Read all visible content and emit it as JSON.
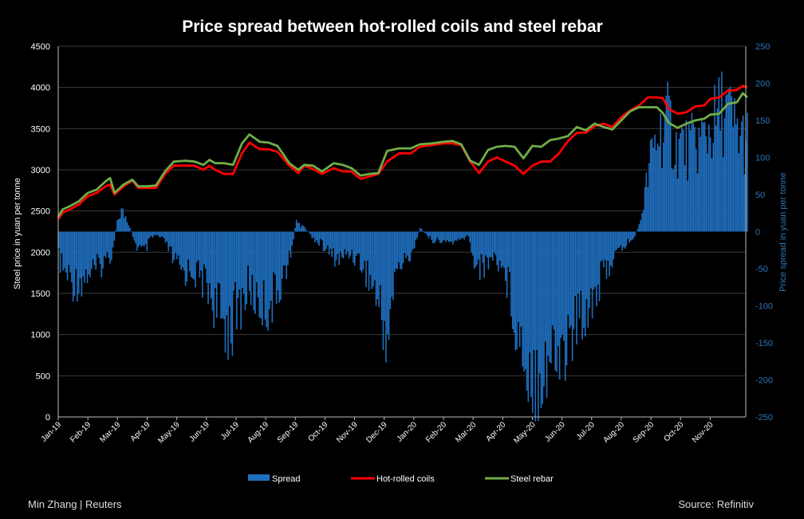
{
  "chart_data": {
    "type": "bar+line",
    "title": "Price spread between hot-rolled coils and steel rebar",
    "ylabel_left": "Steel price in yuan per tonne",
    "ylabel_right": "Price spread in yuan per tonne",
    "ylim_left": [
      0,
      4500
    ],
    "ylim_right": [
      -250,
      250
    ],
    "yticks_left": [
      "0",
      "500",
      "1000",
      "1500",
      "2000",
      "2500",
      "3000",
      "3500",
      "4000",
      "4500"
    ],
    "yticks_right": [
      "-250",
      "-200",
      "-150",
      "-100",
      "-50",
      "0",
      "50",
      "100",
      "150",
      "200",
      "250"
    ],
    "x_ticks": [
      "Jan-19",
      "Feb-19",
      "Mar-19",
      "Apr-19",
      "May-19",
      "Jun-19",
      "Jul-19",
      "Aug-19",
      "Sep-19",
      "Oct-19",
      "Nov-19",
      "Dec-19",
      "Jan-20",
      "Feb-20",
      "Mar-20",
      "Apr-20",
      "May-20",
      "Jun-20",
      "Jul-20",
      "Aug-20",
      "Sep-20",
      "Oct-20",
      "Nov-20"
    ],
    "x_range_months": [
      0,
      23.2
    ],
    "grid": true,
    "legend": "bottom",
    "colors": {
      "spread": "#1f6fbf",
      "hrc": "#ff0000",
      "rebar": "#70ad47",
      "grid": "#3a3a3a"
    },
    "series": [
      {
        "name": "Hot-rolled coils",
        "axis": "left",
        "points": [
          [
            0,
            2400
          ],
          [
            0.15,
            2480
          ],
          [
            0.4,
            2520
          ],
          [
            0.7,
            2580
          ],
          [
            1.0,
            2680
          ],
          [
            1.3,
            2720
          ],
          [
            1.6,
            2800
          ],
          [
            1.75,
            2820
          ],
          [
            1.9,
            2700
          ],
          [
            2.2,
            2800
          ],
          [
            2.5,
            2870
          ],
          [
            2.7,
            2780
          ],
          [
            3.0,
            2780
          ],
          [
            3.3,
            2780
          ],
          [
            3.6,
            2950
          ],
          [
            3.9,
            3050
          ],
          [
            4.3,
            3050
          ],
          [
            4.6,
            3050
          ],
          [
            4.9,
            3000
          ],
          [
            5.1,
            3050
          ],
          [
            5.3,
            3000
          ],
          [
            5.6,
            2950
          ],
          [
            5.9,
            2950
          ],
          [
            6.2,
            3200
          ],
          [
            6.45,
            3330
          ],
          [
            6.8,
            3250
          ],
          [
            7.1,
            3250
          ],
          [
            7.4,
            3220
          ],
          [
            7.8,
            3050
          ],
          [
            8.1,
            2960
          ],
          [
            8.3,
            3050
          ],
          [
            8.6,
            3010
          ],
          [
            8.9,
            2950
          ],
          [
            9.3,
            3020
          ],
          [
            9.6,
            2980
          ],
          [
            9.9,
            2980
          ],
          [
            10.2,
            2890
          ],
          [
            10.5,
            2920
          ],
          [
            10.8,
            2950
          ],
          [
            11.1,
            3100
          ],
          [
            11.5,
            3200
          ],
          [
            11.9,
            3200
          ],
          [
            12.2,
            3280
          ],
          [
            12.6,
            3300
          ],
          [
            13.0,
            3320
          ],
          [
            13.3,
            3320
          ],
          [
            13.6,
            3300
          ],
          [
            13.9,
            3100
          ],
          [
            14.2,
            2960
          ],
          [
            14.5,
            3100
          ],
          [
            14.8,
            3150
          ],
          [
            15.1,
            3100
          ],
          [
            15.4,
            3050
          ],
          [
            15.7,
            2950
          ],
          [
            16.0,
            3050
          ],
          [
            16.3,
            3100
          ],
          [
            16.6,
            3100
          ],
          [
            16.9,
            3200
          ],
          [
            17.2,
            3350
          ],
          [
            17.5,
            3450
          ],
          [
            17.8,
            3450
          ],
          [
            18.1,
            3530
          ],
          [
            18.4,
            3560
          ],
          [
            18.7,
            3520
          ],
          [
            19.0,
            3640
          ],
          [
            19.3,
            3720
          ],
          [
            19.6,
            3780
          ],
          [
            19.9,
            3880
          ],
          [
            20.2,
            3880
          ],
          [
            20.4,
            3870
          ],
          [
            20.6,
            3740
          ],
          [
            20.9,
            3680
          ],
          [
            21.2,
            3700
          ],
          [
            21.5,
            3770
          ],
          [
            21.8,
            3780
          ],
          [
            22.0,
            3860
          ],
          [
            22.3,
            3880
          ],
          [
            22.6,
            3960
          ],
          [
            22.9,
            3970
          ],
          [
            23.1,
            4020
          ],
          [
            23.25,
            4000
          ]
        ]
      },
      {
        "name": "Steel rebar",
        "axis": "left",
        "points": [
          [
            0,
            2430
          ],
          [
            0.15,
            2520
          ],
          [
            0.4,
            2560
          ],
          [
            0.7,
            2620
          ],
          [
            1.0,
            2720
          ],
          [
            1.3,
            2760
          ],
          [
            1.6,
            2860
          ],
          [
            1.75,
            2900
          ],
          [
            1.9,
            2720
          ],
          [
            2.2,
            2820
          ],
          [
            2.5,
            2880
          ],
          [
            2.7,
            2800
          ],
          [
            3.0,
            2800
          ],
          [
            3.3,
            2810
          ],
          [
            3.6,
            2980
          ],
          [
            3.9,
            3100
          ],
          [
            4.3,
            3110
          ],
          [
            4.6,
            3100
          ],
          [
            4.9,
            3060
          ],
          [
            5.1,
            3120
          ],
          [
            5.3,
            3080
          ],
          [
            5.6,
            3080
          ],
          [
            5.9,
            3060
          ],
          [
            6.2,
            3320
          ],
          [
            6.45,
            3430
          ],
          [
            6.8,
            3340
          ],
          [
            7.1,
            3330
          ],
          [
            7.4,
            3290
          ],
          [
            7.8,
            3080
          ],
          [
            8.1,
            3000
          ],
          [
            8.3,
            3060
          ],
          [
            8.6,
            3050
          ],
          [
            8.9,
            2980
          ],
          [
            9.3,
            3080
          ],
          [
            9.6,
            3060
          ],
          [
            9.9,
            3020
          ],
          [
            10.2,
            2930
          ],
          [
            10.5,
            2950
          ],
          [
            10.8,
            2960
          ],
          [
            11.1,
            3230
          ],
          [
            11.5,
            3260
          ],
          [
            11.9,
            3260
          ],
          [
            12.2,
            3310
          ],
          [
            12.6,
            3320
          ],
          [
            13.0,
            3340
          ],
          [
            13.3,
            3350
          ],
          [
            13.6,
            3310
          ],
          [
            13.9,
            3110
          ],
          [
            14.2,
            3060
          ],
          [
            14.5,
            3240
          ],
          [
            14.8,
            3280
          ],
          [
            15.1,
            3290
          ],
          [
            15.4,
            3280
          ],
          [
            15.7,
            3140
          ],
          [
            16.0,
            3290
          ],
          [
            16.3,
            3280
          ],
          [
            16.6,
            3360
          ],
          [
            16.9,
            3380
          ],
          [
            17.2,
            3410
          ],
          [
            17.5,
            3520
          ],
          [
            17.8,
            3480
          ],
          [
            18.1,
            3560
          ],
          [
            18.4,
            3520
          ],
          [
            18.7,
            3490
          ],
          [
            19.0,
            3600
          ],
          [
            19.3,
            3710
          ],
          [
            19.6,
            3760
          ],
          [
            19.9,
            3760
          ],
          [
            20.2,
            3760
          ],
          [
            20.4,
            3690
          ],
          [
            20.6,
            3570
          ],
          [
            20.9,
            3510
          ],
          [
            21.2,
            3560
          ],
          [
            21.5,
            3600
          ],
          [
            21.8,
            3620
          ],
          [
            22.0,
            3670
          ],
          [
            22.3,
            3680
          ],
          [
            22.6,
            3800
          ],
          [
            22.9,
            3820
          ],
          [
            23.1,
            3930
          ],
          [
            23.25,
            3880
          ]
        ]
      },
      {
        "name": "Spread",
        "axis": "right",
        "points": [
          [
            0,
            -40
          ],
          [
            0.2,
            -60
          ],
          [
            0.5,
            -75
          ],
          [
            0.8,
            -70
          ],
          [
            1.0,
            -60
          ],
          [
            1.3,
            -55
          ],
          [
            1.6,
            -40
          ],
          [
            1.8,
            -30
          ],
          [
            1.95,
            10
          ],
          [
            2.1,
            30
          ],
          [
            2.3,
            20
          ],
          [
            2.6,
            -20
          ],
          [
            2.9,
            -30
          ],
          [
            3.1,
            -10
          ],
          [
            3.3,
            -5
          ],
          [
            3.6,
            -15
          ],
          [
            3.9,
            -45
          ],
          [
            4.2,
            -60
          ],
          [
            4.5,
            -55
          ],
          [
            4.8,
            -70
          ],
          [
            5.0,
            -75
          ],
          [
            5.2,
            -100
          ],
          [
            5.5,
            -130
          ],
          [
            5.8,
            -135
          ],
          [
            6.0,
            -120
          ],
          [
            6.2,
            -100
          ],
          [
            6.4,
            -80
          ],
          [
            6.7,
            -100
          ],
          [
            7.0,
            -110
          ],
          [
            7.3,
            -95
          ],
          [
            7.6,
            -60
          ],
          [
            7.85,
            -35
          ],
          [
            8.0,
            15
          ],
          [
            8.3,
            5
          ],
          [
            8.6,
            -10
          ],
          [
            8.9,
            -20
          ],
          [
            9.2,
            -35
          ],
          [
            9.5,
            -40
          ],
          [
            9.8,
            -30
          ],
          [
            10.1,
            -40
          ],
          [
            10.4,
            -60
          ],
          [
            10.7,
            -90
          ],
          [
            10.9,
            -130
          ],
          [
            11.05,
            -150
          ],
          [
            11.2,
            -120
          ],
          [
            11.4,
            -50
          ],
          [
            11.7,
            -45
          ],
          [
            12.0,
            -20
          ],
          [
            12.2,
            5
          ],
          [
            12.5,
            -10
          ],
          [
            12.8,
            -15
          ],
          [
            13.1,
            -15
          ],
          [
            13.5,
            -15
          ],
          [
            13.8,
            -5
          ],
          [
            14.0,
            -40
          ],
          [
            14.3,
            -55
          ],
          [
            14.6,
            -35
          ],
          [
            14.9,
            -45
          ],
          [
            15.2,
            -80
          ],
          [
            15.5,
            -150
          ],
          [
            15.8,
            -185
          ],
          [
            16.0,
            -205
          ],
          [
            16.3,
            -195
          ],
          [
            16.6,
            -185
          ],
          [
            16.9,
            -175
          ],
          [
            17.2,
            -160
          ],
          [
            17.5,
            -130
          ],
          [
            17.8,
            -110
          ],
          [
            18.0,
            -95
          ],
          [
            18.3,
            -70
          ],
          [
            18.6,
            -45
          ],
          [
            18.9,
            -30
          ],
          [
            19.2,
            -15
          ],
          [
            19.4,
            -10
          ],
          [
            19.6,
            10
          ],
          [
            19.8,
            60
          ],
          [
            20.0,
            110
          ],
          [
            20.2,
            140
          ],
          [
            20.4,
            150
          ],
          [
            20.6,
            160
          ],
          [
            20.8,
            120
          ],
          [
            21.0,
            130
          ],
          [
            21.2,
            120
          ],
          [
            21.4,
            125
          ],
          [
            21.6,
            130
          ],
          [
            21.8,
            140
          ],
          [
            22.0,
            150
          ],
          [
            22.2,
            160
          ],
          [
            22.4,
            180
          ],
          [
            22.6,
            170
          ],
          [
            22.8,
            150
          ],
          [
            23.0,
            140
          ],
          [
            23.25,
            130
          ]
        ]
      }
    ],
    "legend_labels": [
      "Spread",
      "Hot-rolled coils",
      "Steel rebar"
    ]
  },
  "footer": {
    "author": "Min Zhang | Reuters",
    "source": "Source: Refinitiv"
  }
}
